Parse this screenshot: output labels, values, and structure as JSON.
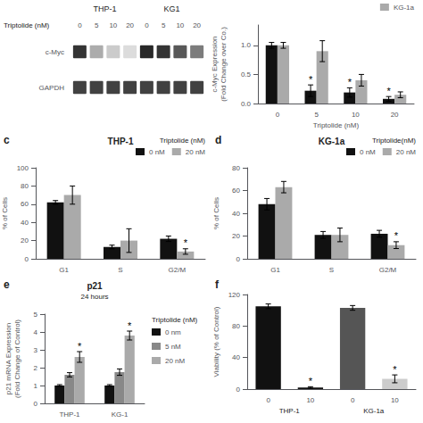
{
  "chart_data": [
    {
      "type": "blot",
      "xlabel": "Triptolide (nM)",
      "categories": [
        "0",
        "5",
        "10",
        "20",
        "0",
        "5",
        "10",
        "20"
      ],
      "groups": [
        "THP-1",
        "THP-1",
        "THP-1",
        "THP-1",
        "KG1",
        "KG1",
        "KG1",
        "KG1"
      ],
      "color": "#111111",
      "rows": [
        {
          "name": "c-Myc",
          "values": [
            0.85,
            0.35,
            0.22,
            0.15,
            0.9,
            0.85,
            0.7,
            0.55
          ]
        },
        {
          "name": "GAPDH",
          "values": [
            0.8,
            0.8,
            0.8,
            0.8,
            0.8,
            0.8,
            0.8,
            0.8
          ]
        }
      ]
    },
    {
      "type": "bar",
      "xlabel": "Triptolide (nM)",
      "ylabel": "c-Myc Expression\n(Fold Change over Co.)",
      "categories": [
        "0",
        "5",
        "10",
        "20"
      ],
      "series": [
        {
          "color": "#111111",
          "values": [
            1.0,
            0.22,
            0.19,
            0.08
          ],
          "errors": [
            0.05,
            0.1,
            0.08,
            0.04
          ],
          "annotations": [
            null,
            "*",
            "*",
            "*"
          ]
        },
        {
          "name": "KG-1a",
          "color": "#aaaaaa",
          "values": [
            1.0,
            0.9,
            0.4,
            0.15
          ],
          "errors": [
            0.05,
            0.18,
            0.1,
            0.05
          ]
        }
      ],
      "ylim": [
        0,
        1.35
      ],
      "yticks": [
        {
          "value": 0.0,
          "label": "0.0"
        },
        0.5,
        {
          "value": 1.0,
          "label": "1.0"
        }
      ],
      "grid": false,
      "legend": "upper right"
    },
    {
      "type": "bar",
      "title": "THP-1",
      "panel_label": "c",
      "ylabel": "% of Cells",
      "categories": [
        "G1",
        "S",
        "G2/M"
      ],
      "series": [
        {
          "name": "0 nM",
          "color": "#111111",
          "values": [
            62,
            13,
            22
          ],
          "errors": [
            2,
            2,
            3
          ]
        },
        {
          "name": "20 nM",
          "color": "#aaaaaa",
          "values": [
            70,
            20,
            8
          ],
          "errors": [
            10,
            13,
            3
          ],
          "annotations": [
            null,
            null,
            "*"
          ]
        }
      ],
      "ylim": [
        0,
        100
      ],
      "yticks": [
        0,
        20,
        40,
        60,
        80,
        100
      ],
      "grid": false,
      "legend": "upper right",
      "legend_title": "Triptolide (nM)"
    },
    {
      "type": "bar",
      "title": "KG-1a",
      "panel_label": "d",
      "ylabel": "% of Cells",
      "categories": [
        "G1",
        "S",
        "G2/M"
      ],
      "series": [
        {
          "name": "0 nM",
          "color": "#111111",
          "values": [
            48,
            21,
            22
          ],
          "errors": [
            5,
            3,
            3
          ]
        },
        {
          "name": "20 nM",
          "color": "#aaaaaa",
          "values": [
            63,
            21,
            12
          ],
          "errors": [
            5,
            6,
            3
          ],
          "annotations": [
            null,
            null,
            "*"
          ]
        }
      ],
      "ylim": [
        0,
        80
      ],
      "yticks": [
        0,
        20,
        40,
        60,
        80
      ],
      "grid": false,
      "legend": "upper right",
      "legend_title": "Triptolide(nM)"
    },
    {
      "type": "bar",
      "title": "p21",
      "subtitle": "24 hours",
      "panel_label": "e",
      "ylabel": "p21 mRNA Expression\n(Fold Change of Control)",
      "categories": [
        "THP-1",
        "KG-1"
      ],
      "series": [
        {
          "name": "0 nm",
          "color": "#111111",
          "values": [
            1.0,
            1.0
          ],
          "errors": [
            0.05,
            0.05
          ]
        },
        {
          "name": "5 nM",
          "color": "#888888",
          "values": [
            1.6,
            1.75
          ],
          "errors": [
            0.12,
            0.18
          ]
        },
        {
          "name": "20 nM",
          "color": "#aaaaaa",
          "values": [
            2.6,
            3.8
          ],
          "errors": [
            0.3,
            0.25
          ],
          "annotations": [
            "*",
            "*"
          ]
        }
      ],
      "ylim": [
        0,
        5
      ],
      "yticks": [
        0,
        1,
        2,
        3,
        4,
        5
      ],
      "grid": false,
      "legend": "right",
      "legend_title": "Triptolide (nM)"
    },
    {
      "type": "bar",
      "panel_label": "f",
      "ylabel": "Viability (% of Control)",
      "categories": [
        "0",
        "10",
        "0",
        "10"
      ],
      "groups": [
        "THP-1",
        "THP-1",
        "KG-1a",
        "KG-1a"
      ],
      "series": [
        {
          "colors": [
            "#111111",
            "#111111",
            "#555555",
            "#cccccc"
          ],
          "values": [
            105,
            2,
            103,
            13
          ],
          "errors": [
            3,
            1,
            3,
            5
          ],
          "annotations": [
            null,
            "*",
            null,
            "*"
          ]
        }
      ],
      "ylim": [
        0,
        120
      ],
      "yticks": [
        0,
        40,
        80,
        120
      ],
      "grid": false
    }
  ]
}
